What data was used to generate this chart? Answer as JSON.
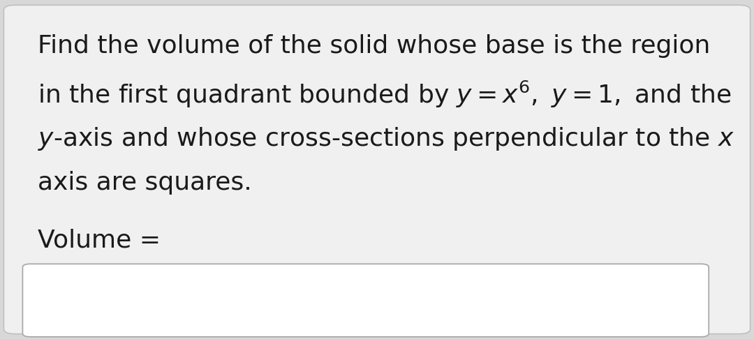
{
  "bg_color": "#d8d8d8",
  "card_color": "#f0f0f0",
  "text_color": "#1a1a1a",
  "line1": "Find the volume of the solid whose base is the region",
  "line2": "in the first quadrant bounded by $y = x^{6},\\ y = 1,$ and the",
  "line3": "$y$-axis and whose cross-sections perpendicular to the $x$",
  "line4": "axis are squares.",
  "volume_label": "Volume =",
  "font_size_main": 26,
  "input_box_color": "#ffffff",
  "input_box_edge": "#aaaaaa",
  "card_edge": "#c0c0c0"
}
